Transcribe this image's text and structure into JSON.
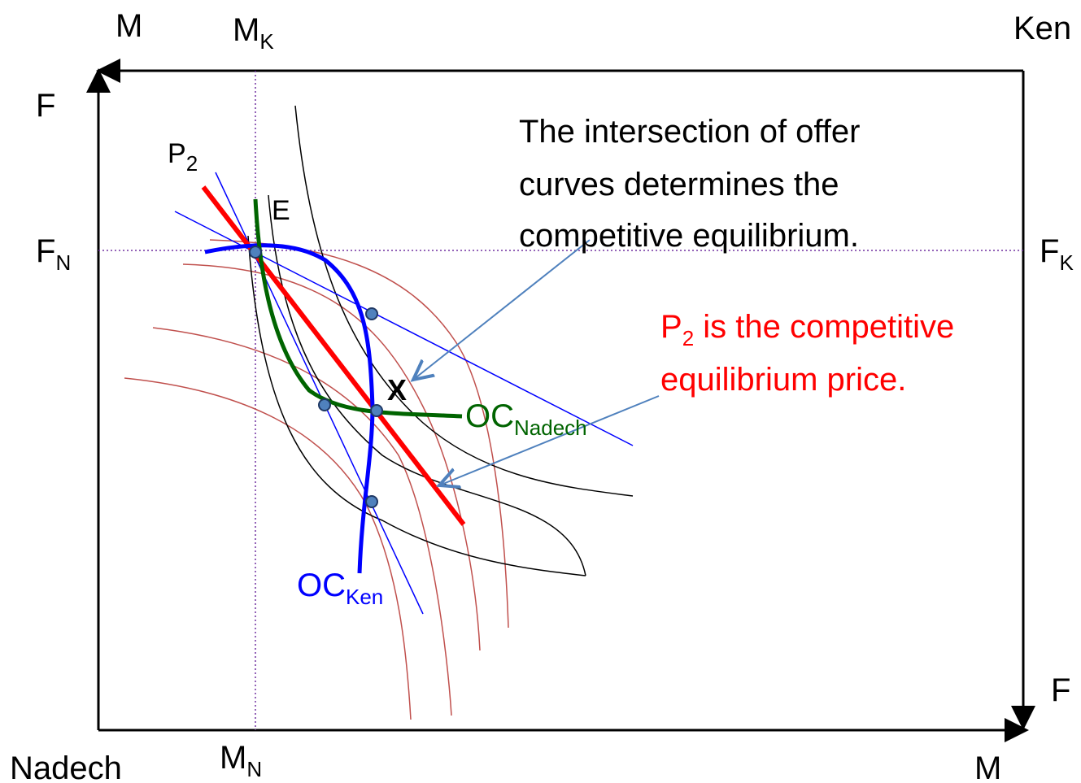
{
  "labels": {
    "top_left_m": "M",
    "top_mk": {
      "main": "M",
      "sub": "K"
    },
    "top_right_origin": "Ken",
    "left_f": "F",
    "price_line": {
      "main": "P",
      "sub": "2"
    },
    "endowment": "E",
    "left_fn": {
      "main": "F",
      "sub": "N"
    },
    "right_fk": {
      "main": "F",
      "sub": "K"
    },
    "equilibrium": "X",
    "oc_nadech": {
      "main": "OC",
      "sub": "Nadech"
    },
    "oc_ken": {
      "main": "OC",
      "sub": "Ken"
    },
    "right_f": "F",
    "bottom_left_origin": "Nadech",
    "bottom_mn": {
      "main": "M",
      "sub": "N"
    },
    "bottom_right_m": "M"
  },
  "annotations": [
    {
      "lines": [
        "The intersection of offer",
        "curves determines the",
        "competitive equilibrium."
      ]
    },
    {
      "first": {
        "main": "P",
        "sub": "2",
        "rest": " is the competitive"
      },
      "second": "equilibrium price."
    }
  ]
}
